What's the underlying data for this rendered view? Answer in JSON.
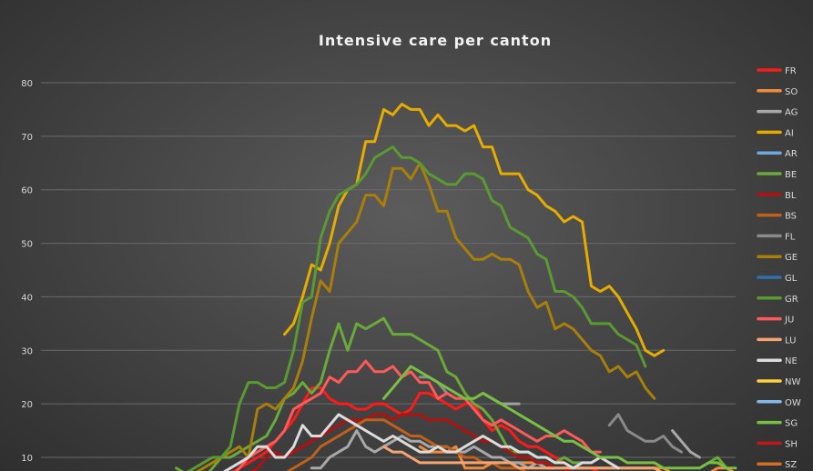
{
  "chart_data": {
    "type": "line",
    "title": "Intensive care per canton",
    "xlabel": "",
    "ylabel": "",
    "ylim": [
      7,
      83
    ],
    "y_ticks": [
      10,
      20,
      30,
      40,
      50,
      60,
      70,
      80
    ],
    "grid": "horizontal",
    "legend_position": "right",
    "x_count": 78,
    "series": [
      {
        "name": "FR",
        "color": "#ff1a1a",
        "start": 20,
        "values": [
          6,
          7,
          8,
          9,
          10,
          11,
          13,
          15,
          17,
          20,
          23,
          23,
          21,
          20,
          20,
          19,
          19,
          20,
          20,
          19,
          18,
          19,
          22,
          22,
          21,
          20,
          19,
          20,
          20,
          17,
          15,
          16,
          15,
          13,
          12,
          12,
          11,
          10,
          9,
          8,
          8,
          8,
          7,
          7,
          7,
          6,
          6,
          6
        ]
      },
      {
        "name": "SO",
        "color": "#f08c3c",
        "start": 42,
        "values": [
          12,
          11,
          11,
          11,
          12,
          8,
          8,
          8,
          9,
          9,
          9,
          9,
          9,
          9,
          9,
          8,
          8,
          8,
          8,
          8,
          8,
          8,
          8,
          8,
          8,
          8,
          8,
          8,
          7,
          7,
          7,
          7,
          7,
          8,
          8,
          7
        ]
      },
      {
        "name": "AG",
        "color": "#a8a8a8",
        "start": 30,
        "values": [
          8,
          8,
          10,
          11,
          12,
          15,
          12,
          11,
          12,
          13,
          14,
          13,
          13,
          12,
          12,
          12,
          11,
          11,
          12,
          11,
          10,
          10,
          9,
          9,
          8,
          9,
          8,
          8,
          8,
          8,
          8
        ]
      },
      {
        "name": "AI",
        "color": "#e6ac00",
        "start": 27,
        "values": [
          33,
          35,
          40,
          46,
          45,
          50,
          57,
          60,
          61,
          69,
          69,
          75,
          74,
          76,
          75,
          75,
          72,
          74,
          72,
          72,
          71,
          72,
          68,
          68,
          63,
          63,
          63,
          60,
          59,
          57,
          56,
          54,
          55,
          54,
          42,
          41,
          42,
          40,
          37,
          34,
          30,
          29,
          30
        ]
      },
      {
        "name": "AR",
        "color": "#6fa8dc",
        "start": 60,
        "values": []
      },
      {
        "name": "BE",
        "color": "#6aaa3a",
        "start": 15,
        "values": [
          8,
          7,
          6,
          6,
          8,
          10,
          10,
          11,
          12,
          13,
          14,
          17,
          21,
          22,
          24,
          22,
          24,
          30,
          35,
          30,
          35,
          34,
          35,
          36,
          33,
          33,
          33,
          32,
          31,
          30,
          26,
          25,
          22,
          20,
          19,
          17,
          14,
          11,
          11,
          11,
          10,
          10,
          9,
          10,
          9,
          9
        ]
      },
      {
        "name": "BL",
        "color": "#b31010",
        "start": 21,
        "values": [
          5,
          6,
          7,
          8,
          10,
          11,
          10,
          11,
          12,
          13,
          14,
          15,
          16,
          17,
          17,
          17,
          18,
          18,
          17,
          18,
          18,
          18,
          17,
          17,
          17,
          16,
          15,
          14,
          13,
          13,
          12,
          11,
          10,
          10,
          9,
          9,
          8,
          8,
          7,
          7,
          7,
          6,
          6,
          6,
          6
        ]
      },
      {
        "name": "BS",
        "color": "#c0601a",
        "start": 25,
        "values": [
          5,
          6,
          7,
          8,
          9,
          10,
          12,
          13,
          14,
          15,
          16,
          17,
          17,
          17,
          16,
          15,
          14,
          14,
          13,
          12,
          12,
          11,
          10,
          10,
          9,
          9,
          8,
          8,
          8,
          7,
          7,
          7
        ]
      },
      {
        "name": "FL",
        "color": "#8a8a8a",
        "start": 63,
        "values": [
          16,
          18,
          15,
          14,
          13,
          13,
          14,
          12,
          11
        ]
      },
      {
        "name": "GE",
        "color": "#a87f0a",
        "start": 15,
        "values": [
          5,
          6,
          7,
          8,
          9,
          10,
          11,
          12,
          10,
          19,
          20,
          19,
          21,
          23,
          28,
          36,
          43,
          41,
          50,
          52,
          54,
          59,
          59,
          57,
          64,
          64,
          62,
          65,
          61,
          56,
          56,
          51,
          49,
          47,
          47,
          48,
          47,
          47,
          46,
          41,
          38,
          39,
          34,
          35,
          34,
          32,
          30,
          29,
          26,
          27,
          25,
          26,
          23,
          21
        ]
      },
      {
        "name": "GL",
        "color": "#2e6fad",
        "start": 60,
        "values": []
      },
      {
        "name": "GR",
        "color": "#5a9a32",
        "start": 13,
        "values": [
          7,
          6,
          6,
          7,
          8,
          9,
          10,
          10,
          12,
          20,
          24,
          24,
          23,
          23,
          24,
          30,
          39,
          40,
          51,
          56,
          59,
          60,
          61,
          63,
          66,
          67,
          68,
          66,
          66,
          65,
          63,
          62,
          61,
          61,
          63,
          63,
          62,
          58,
          57,
          53,
          52,
          51,
          48,
          47,
          41,
          41,
          40,
          38,
          35,
          35,
          35,
          33,
          32,
          31,
          27
        ]
      },
      {
        "name": "JU",
        "color": "#ff5a5a",
        "start": 20,
        "values": [
          5,
          6,
          8,
          10,
          11,
          12,
          13,
          15,
          19,
          20,
          21,
          22,
          25,
          24,
          26,
          26,
          28,
          26,
          26,
          27,
          25,
          26,
          24,
          24,
          21,
          22,
          21,
          21,
          19,
          17,
          16,
          17,
          16,
          15,
          14,
          13,
          14,
          14,
          15,
          14,
          13,
          11,
          11
        ]
      },
      {
        "name": "LU",
        "color": "#f5a472",
        "start": 38,
        "values": [
          12,
          11,
          11,
          10,
          9,
          9,
          9,
          9,
          9,
          9,
          9,
          9,
          9,
          9,
          9,
          8,
          8,
          8,
          8,
          8,
          8,
          8,
          8,
          8,
          8,
          8,
          8,
          8,
          8,
          8,
          8,
          7,
          7,
          7,
          7
        ]
      },
      {
        "name": "NE",
        "color": "#dcdcdc",
        "start": 20,
        "values": [
          7,
          8,
          9,
          10,
          12,
          12,
          10,
          10,
          12,
          16,
          14,
          14,
          16,
          18,
          17,
          16,
          15,
          14,
          13,
          14,
          13,
          12,
          11,
          11,
          12,
          11,
          11,
          12,
          13,
          14,
          13,
          12,
          12,
          11,
          11,
          10,
          10,
          9,
          9,
          8,
          9,
          9,
          10,
          9,
          8
        ]
      },
      {
        "name": "NW",
        "color": "#ffd040",
        "start": 45,
        "values": []
      },
      {
        "name": "OW",
        "color": "#88b8e8",
        "start": 45,
        "values": []
      },
      {
        "name": "SG",
        "color": "#77c043",
        "start": 38,
        "values": [
          21,
          23,
          25,
          27,
          26,
          25,
          24,
          23,
          22,
          21,
          21,
          22,
          21,
          20,
          19,
          18,
          17,
          16,
          15,
          14,
          13,
          13,
          12,
          11,
          10,
          10,
          10,
          9,
          9,
          9,
          9,
          8,
          8,
          8,
          8,
          8,
          9,
          9,
          8,
          8
        ]
      },
      {
        "name": "SH",
        "color": "#c01818",
        "start": 32,
        "values": []
      },
      {
        "name": "SZ",
        "color": "#d46f24",
        "start": 32,
        "values": []
      }
    ],
    "overlay_series": [
      {
        "color": "#8c8c8c",
        "start": 42,
        "values": [
          25,
          25,
          24,
          22
        ]
      },
      {
        "color": "#a0a0a0",
        "start": 49,
        "values": [
          22,
          21,
          20,
          20,
          20
        ]
      },
      {
        "color": "#a8a8a8",
        "start": 70,
        "values": [
          15,
          13,
          11,
          10
        ]
      },
      {
        "color": "#6aaa3a",
        "start": 74,
        "values": [
          9,
          10,
          8
        ]
      }
    ]
  }
}
